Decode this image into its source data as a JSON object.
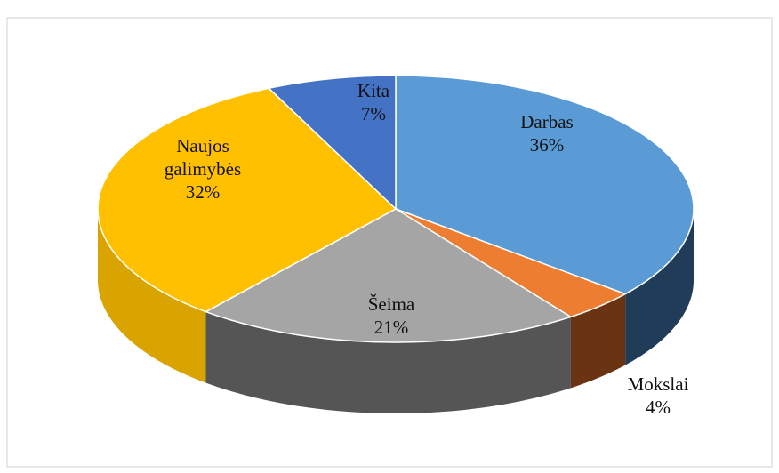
{
  "chart_data": {
    "type": "pie",
    "categories": [
      "Darbas",
      "Mokslai",
      "Šeima",
      "Naujos galimybės",
      "Kita"
    ],
    "values": [
      36,
      4,
      21,
      32,
      7
    ],
    "value_labels": [
      "36%",
      "4%",
      "21%",
      "32%",
      "7%"
    ],
    "colors": [
      "#5b9bd5",
      "#ed7d31",
      "#a5a5a5",
      "#ffc000",
      "#4472c4"
    ],
    "side_colors": [
      "#203c58",
      "#6a3412",
      "#555555",
      "#d9a300",
      "#2f508a"
    ]
  }
}
